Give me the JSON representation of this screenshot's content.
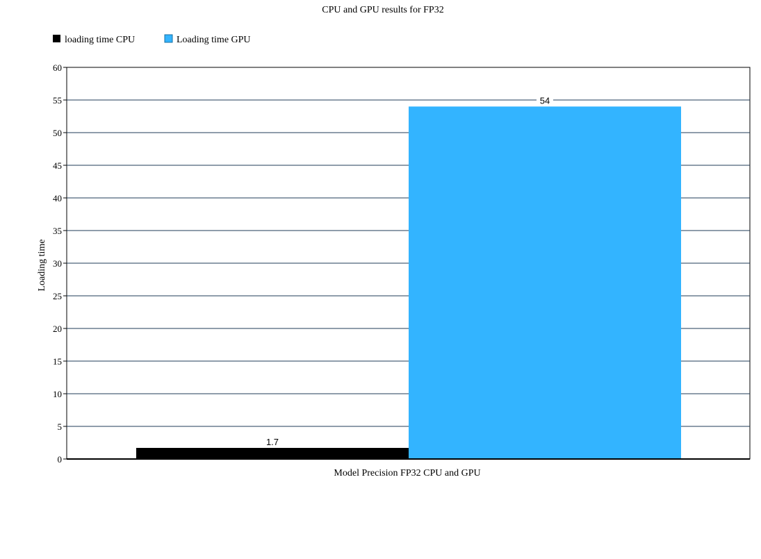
{
  "chart_data": {
    "type": "bar",
    "title": "CPU and GPU results for FP32",
    "xlabel": "Model Precision FP32 CPU and GPU",
    "ylabel": "Loading time",
    "categories": [
      "Model Precision FP32 CPU and GPU"
    ],
    "series": [
      {
        "name": "loading time CPU",
        "values": [
          1.7
        ],
        "color": "#000000",
        "data_labels": [
          "1.7"
        ]
      },
      {
        "name": "Loading time GPU",
        "values": [
          54
        ],
        "color": "#33b4ff",
        "data_labels": [
          "54"
        ]
      }
    ],
    "ylim": [
      0,
      60
    ],
    "yticks": [
      "0",
      "5",
      "10",
      "15",
      "20",
      "25",
      "30",
      "35",
      "40",
      "45",
      "50",
      "55",
      "60"
    ],
    "grid": true,
    "legend_position": "top-left"
  }
}
